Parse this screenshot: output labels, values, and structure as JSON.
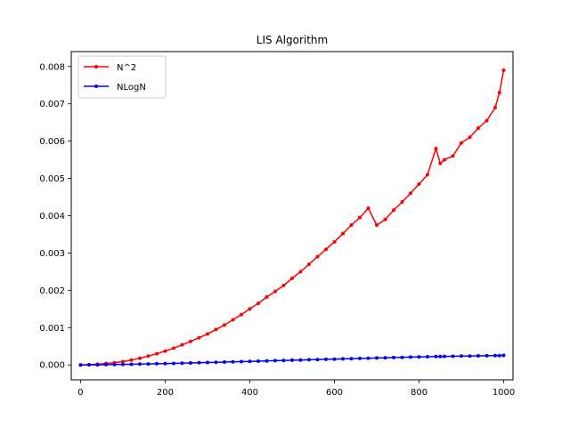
{
  "chart_data": {
    "type": "line",
    "title": "LIS Algorithm",
    "xlabel": "",
    "ylabel": "",
    "xlim": [
      -22,
      1022
    ],
    "ylim": [
      -0.0004,
      0.0084
    ],
    "x_ticks": [
      0,
      200,
      400,
      600,
      800,
      1000
    ],
    "x_tick_labels": [
      "0",
      "200",
      "400",
      "600",
      "800",
      "1000"
    ],
    "y_ticks": [
      0,
      0.001,
      0.002,
      0.003,
      0.004,
      0.005,
      0.006,
      0.007,
      0.008
    ],
    "y_tick_labels": [
      "0.000",
      "0.001",
      "0.002",
      "0.003",
      "0.004",
      "0.005",
      "0.006",
      "0.007",
      "0.008"
    ],
    "grid": false,
    "legend_position": "top-left",
    "x": [
      0,
      20,
      40,
      60,
      80,
      100,
      120,
      140,
      160,
      180,
      200,
      220,
      240,
      260,
      280,
      300,
      320,
      340,
      360,
      380,
      400,
      420,
      440,
      460,
      480,
      500,
      520,
      540,
      560,
      580,
      600,
      620,
      640,
      660,
      680,
      700,
      720,
      740,
      760,
      780,
      800,
      820,
      840,
      850,
      860,
      880,
      900,
      920,
      940,
      960,
      980,
      990,
      1000
    ],
    "series": [
      {
        "name": "N^2",
        "color": "#ff0000",
        "values": [
          0.0,
          5e-06,
          2e-05,
          4e-05,
          6e-05,
          9e-05,
          0.00013,
          0.00018,
          0.00024,
          0.0003,
          0.00037,
          0.00045,
          0.00054,
          0.00063,
          0.00073,
          0.00083,
          0.00095,
          0.00107,
          0.00121,
          0.00135,
          0.0015,
          0.00165,
          0.00182,
          0.00197,
          0.00213,
          0.00232,
          0.0025,
          0.0027,
          0.0029,
          0.0031,
          0.0033,
          0.00352,
          0.00375,
          0.00395,
          0.0042,
          0.00375,
          0.0039,
          0.00415,
          0.00437,
          0.0046,
          0.00485,
          0.0051,
          0.0058,
          0.0054,
          0.0055,
          0.0056,
          0.00595,
          0.0061,
          0.00635,
          0.00655,
          0.0069,
          0.0073,
          0.0079
        ]
      },
      {
        "name": "NLogN",
        "color": "#0000ff",
        "values": [
          0.0,
          2e-06,
          4e-06,
          7e-06,
          1e-05,
          1.4e-05,
          1.8e-05,
          2.2e-05,
          2.7e-05,
          3.2e-05,
          3.7e-05,
          4.2e-05,
          4.8e-05,
          5.4e-05,
          6e-05,
          6.6e-05,
          7.2e-05,
          7.8e-05,
          8.4e-05,
          9e-05,
          9.6e-05,
          0.000102,
          0.000108,
          0.000114,
          0.00012,
          0.000126,
          0.000132,
          0.000138,
          0.000144,
          0.00015,
          0.000156,
          0.000162,
          0.000168,
          0.000174,
          0.00018,
          0.000186,
          0.000192,
          0.000198,
          0.000204,
          0.00021,
          0.000215,
          0.00022,
          0.000225,
          0.000228,
          0.00023,
          0.000233,
          0.000236,
          0.00024,
          0.000243,
          0.000246,
          0.00025,
          0.000252,
          0.000255
        ]
      }
    ]
  }
}
